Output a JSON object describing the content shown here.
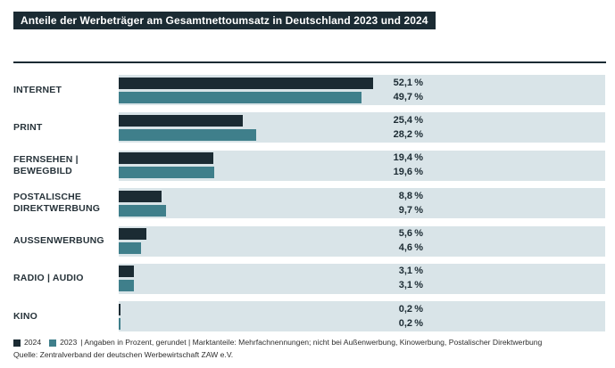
{
  "title": "Anteile der Werbeträger am Gesamtnettoumsatz in Deutschland 2023 und 2024",
  "colors": {
    "year2024_dark": "#1b2b33",
    "year2023_teal": "#3f7f8b",
    "row_band": "#d9e4e8",
    "title_text": "#ffffff",
    "divider": "#1b2b33"
  },
  "chart_data": {
    "type": "bar",
    "orientation": "horizontal",
    "title": "Anteile der Werbeträger am Gesamtnettoumsatz in Deutschland 2023 und 2024",
    "categories": [
      "INTERNET",
      "PRINT",
      "FERNSEHEN | BEWEGBILD",
      "POSTALISCHE DIREKTWERBUNG",
      "AUSSENWERBUNG",
      "RADIO | AUDIO",
      "KINO"
    ],
    "series": [
      {
        "name": "2024",
        "color": "#1b2b33",
        "values": [
          52.1,
          25.4,
          19.4,
          8.8,
          5.6,
          3.1,
          0.2
        ]
      },
      {
        "name": "2023",
        "color": "#3f7f8b",
        "values": [
          49.7,
          28.2,
          19.6,
          9.7,
          4.6,
          3.1,
          0.2
        ]
      }
    ],
    "xlabel": "",
    "ylabel": "",
    "xlim": [
      0,
      100
    ],
    "grid": false,
    "legend_position": "bottom-left",
    "value_labels_unit": "%"
  },
  "rows": [
    {
      "category": "INTERNET",
      "value_2024": "52,1 %",
      "value_2023": "49,7 %"
    },
    {
      "category": "PRINT",
      "value_2024": "25,4 %",
      "value_2023": "28,2 %"
    },
    {
      "category": "FERNSEHEN | BEWEGBILD",
      "value_2024": "19,4 %",
      "value_2023": "19,6 %"
    },
    {
      "category": "POSTALISCHE DIREKTWERBUNG",
      "value_2024": "8,8 %",
      "value_2023": "9,7 %"
    },
    {
      "category": "AUSSENWERBUNG",
      "value_2024": "5,6 %",
      "value_2023": "4,6 %"
    },
    {
      "category": "RADIO | AUDIO",
      "value_2024": "3,1 %",
      "value_2023": "3,1 %"
    },
    {
      "category": "KINO",
      "value_2024": "0,2 %",
      "value_2023": "0,2 %"
    }
  ],
  "legend": {
    "label_2024": "2024",
    "label_2023": "2023",
    "note": "| Angaben in Prozent, gerundet | Marktanteile: Mehrfachnennungen; nicht bei Außenwerbung, Kinowerbung, Postalischer Direktwerbung",
    "source": "Quelle: Zentralverband der deutschen Werbewirtschaft ZAW e.V."
  }
}
